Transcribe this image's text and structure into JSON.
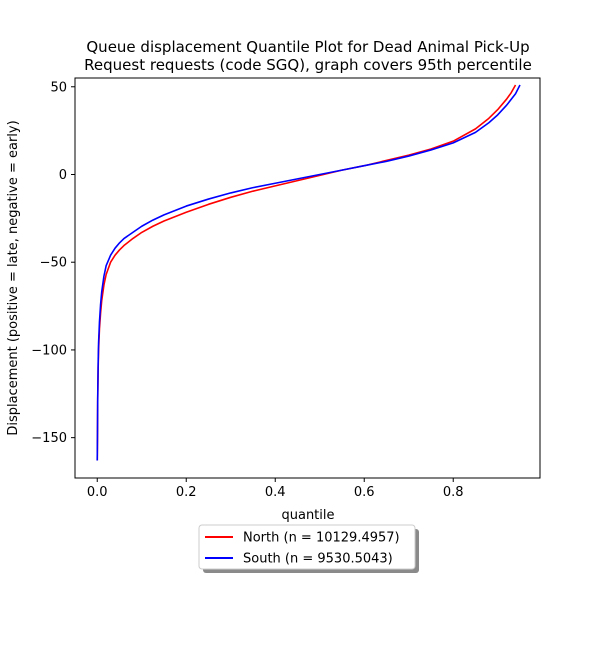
{
  "chart_data": {
    "type": "line",
    "title_line1": "Queue displacement Quantile Plot for Dead Animal Pick-Up",
    "title_line2": "Request  requests (code SGQ), graph covers 95th percentile",
    "xlabel": "quantile",
    "ylabel": "Displacement (positive = late, negative = early)",
    "xlim": [
      -0.05,
      0.995
    ],
    "ylim": [
      -173,
      55
    ],
    "xticks": [
      0.0,
      0.2,
      0.4,
      0.6,
      0.8
    ],
    "xtick_labels": [
      "0.0",
      "0.2",
      "0.4",
      "0.6",
      "0.8"
    ],
    "yticks": [
      50,
      0,
      -50,
      -100,
      -150
    ],
    "ytick_labels": [
      "50",
      "0",
      "−50",
      "−100",
      "−150"
    ],
    "grid": false,
    "legend_position": "below plot, centered",
    "series": [
      {
        "name": "North (n = 10129.4957)",
        "color": "#ff0000",
        "x": [
          0.0,
          0.0005,
          0.001,
          0.002,
          0.003,
          0.005,
          0.0075,
          0.01,
          0.015,
          0.02,
          0.03,
          0.04,
          0.05,
          0.06,
          0.08,
          0.1,
          0.125,
          0.15,
          0.2,
          0.25,
          0.3,
          0.35,
          0.4,
          0.45,
          0.5,
          0.55,
          0.6,
          0.65,
          0.7,
          0.75,
          0.8,
          0.85,
          0.88,
          0.9,
          0.92,
          0.93,
          0.94
        ],
        "y": [
          -163,
          -150,
          -130,
          -111,
          -100,
          -88,
          -79,
          -72,
          -63,
          -57,
          -50,
          -46,
          -43,
          -40.5,
          -36.5,
          -33,
          -29.5,
          -26.5,
          -21.5,
          -17,
          -13,
          -9.5,
          -6.5,
          -3.5,
          -0.5,
          2.5,
          5,
          8,
          11,
          14.5,
          19,
          26,
          32,
          37,
          43,
          46.5,
          51
        ]
      },
      {
        "name": "South (n = 9530.5043)",
        "color": "#0000ff",
        "x": [
          0.0,
          0.0005,
          0.001,
          0.002,
          0.003,
          0.005,
          0.0075,
          0.01,
          0.015,
          0.02,
          0.03,
          0.04,
          0.05,
          0.06,
          0.08,
          0.1,
          0.125,
          0.15,
          0.2,
          0.25,
          0.3,
          0.35,
          0.4,
          0.45,
          0.5,
          0.55,
          0.6,
          0.65,
          0.7,
          0.75,
          0.8,
          0.85,
          0.88,
          0.9,
          0.92,
          0.94,
          0.95
        ],
        "y": [
          -163,
          -148,
          -128,
          -108,
          -96,
          -84,
          -74,
          -67,
          -58,
          -52,
          -46,
          -42,
          -39,
          -36.5,
          -33,
          -29.5,
          -26,
          -23,
          -18,
          -14,
          -10.5,
          -7.5,
          -5,
          -2.5,
          0,
          2.5,
          5,
          7.5,
          10.5,
          14,
          18,
          24,
          29.5,
          34,
          39.5,
          46,
          51
        ]
      }
    ]
  }
}
